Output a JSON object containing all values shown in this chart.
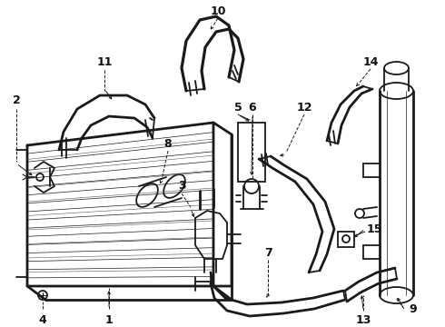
{
  "background_color": "#ffffff",
  "line_color": "#1a1a1a",
  "label_color": "#111111",
  "figsize": [
    4.9,
    3.6
  ],
  "dpi": 100,
  "xlim": [
    0,
    490
  ],
  "ylim": [
    0,
    360
  ]
}
